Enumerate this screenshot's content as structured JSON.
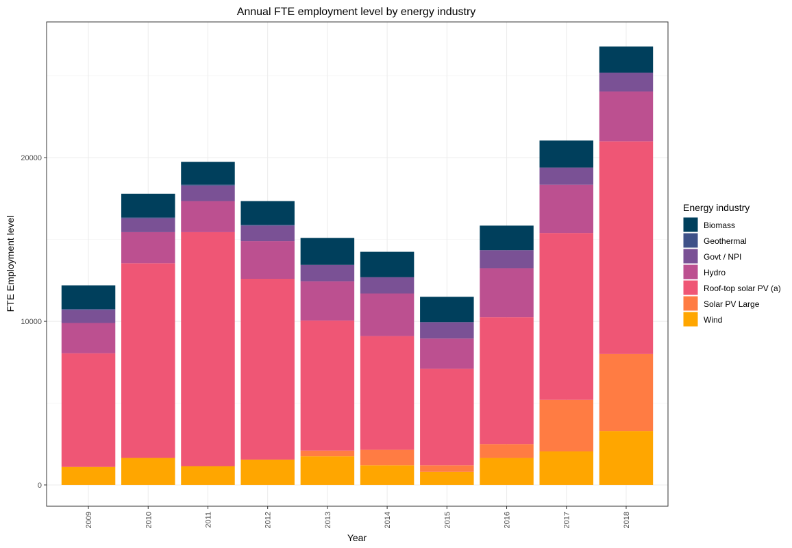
{
  "chart_data": {
    "type": "bar",
    "stacked": true,
    "title": "Annual FTE employment level by energy industry",
    "xlabel": "Year",
    "ylabel": "FTE Employment level",
    "categories": [
      "2009",
      "2010",
      "2011",
      "2012",
      "2013",
      "2014",
      "2015",
      "2016",
      "2017",
      "2018"
    ],
    "ylim": [
      -1300,
      28300
    ],
    "yticks": [
      0,
      10000,
      20000
    ],
    "grid": true,
    "legend_title": "Energy industry",
    "legend_position": "right",
    "series": [
      {
        "name": "Wind",
        "color": "#ffa600",
        "values": [
          1100,
          1650,
          1150,
          1550,
          1750,
          1200,
          800,
          1650,
          2050,
          3300
        ]
      },
      {
        "name": "Solar PV Large",
        "color": "#ff7c43",
        "values": [
          0,
          0,
          0,
          0,
          350,
          950,
          400,
          850,
          3150,
          4700
        ]
      },
      {
        "name": "Roof-top solar PV (a)",
        "color": "#ef5675",
        "values": [
          6950,
          11900,
          14300,
          11050,
          7950,
          6950,
          5900,
          7750,
          10200,
          13000
        ]
      },
      {
        "name": "Hydro",
        "color": "#bc5090",
        "values": [
          1850,
          1900,
          1900,
          2300,
          2400,
          2600,
          1850,
          3000,
          2950,
          3050
        ]
      },
      {
        "name": "Govt / NPI",
        "color": "#7a5195",
        "values": [
          800,
          850,
          950,
          950,
          1000,
          1000,
          1000,
          1100,
          1050,
          1150
        ]
      },
      {
        "name": "Geothermal",
        "color": "#3e5188",
        "values": [
          50,
          50,
          50,
          50,
          0,
          0,
          0,
          0,
          0,
          0
        ]
      },
      {
        "name": "Biomass",
        "color": "#003f5c",
        "values": [
          1450,
          1450,
          1400,
          1450,
          1650,
          1550,
          1550,
          1500,
          1650,
          1600
        ]
      }
    ]
  }
}
